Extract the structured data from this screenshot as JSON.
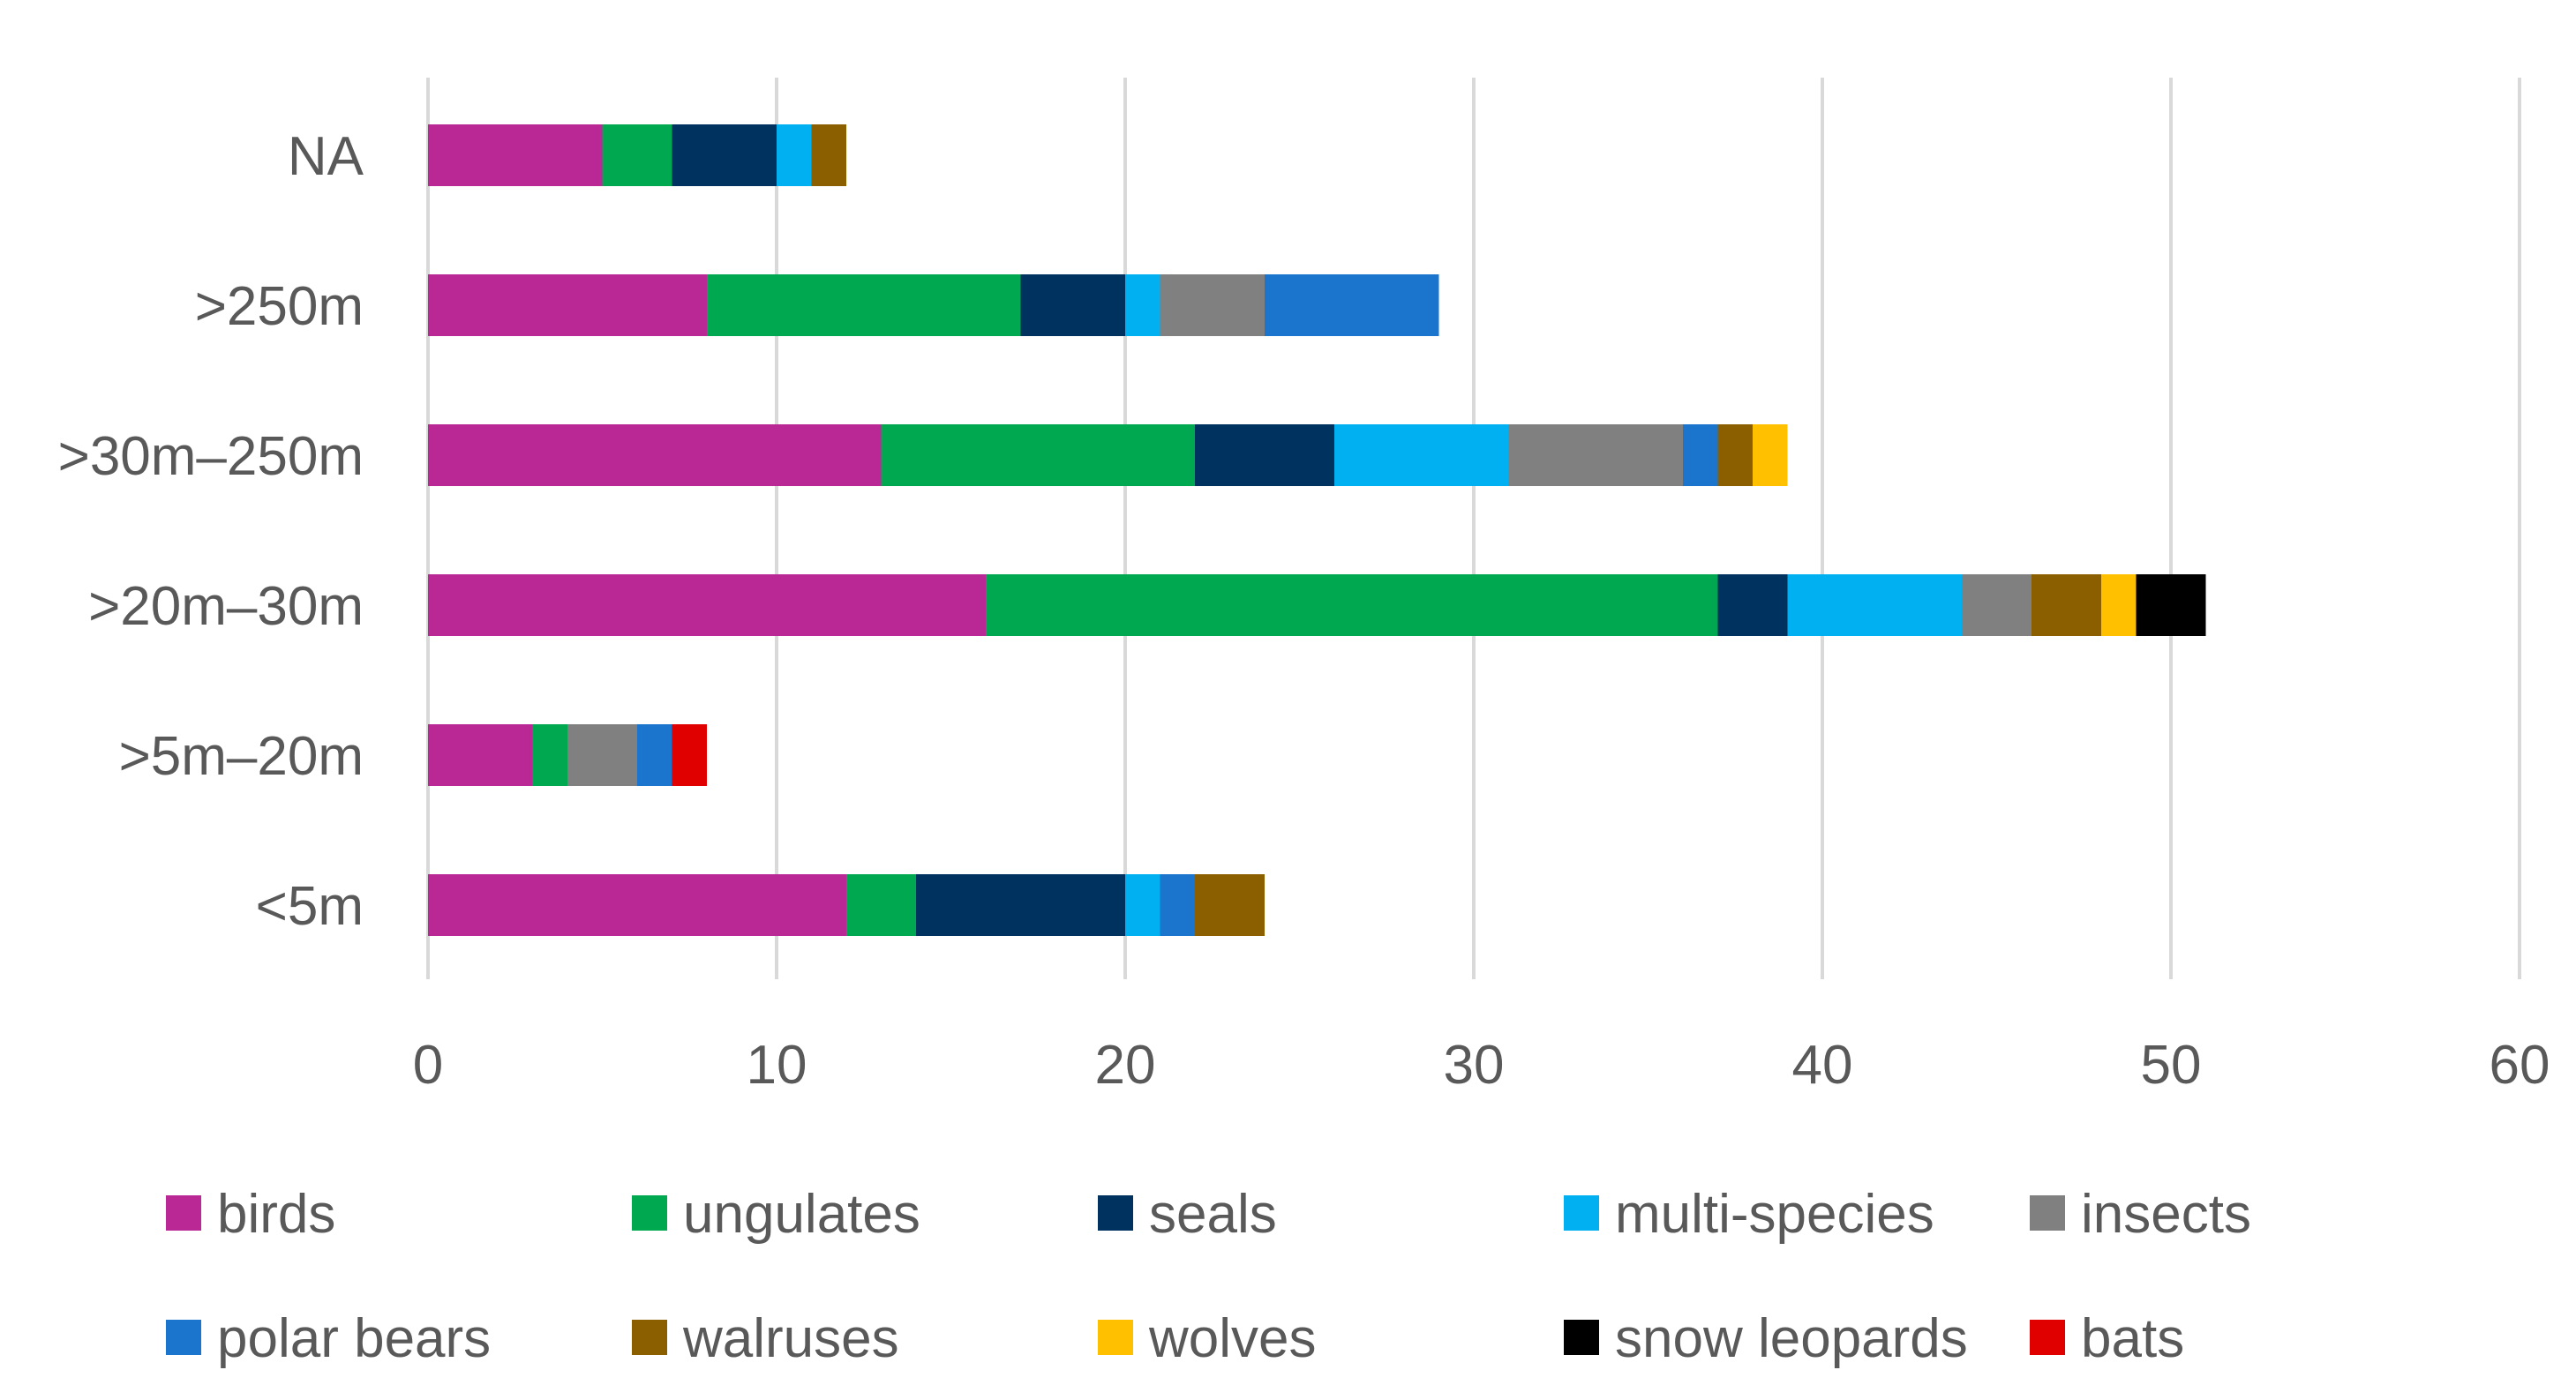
{
  "chart_data": {
    "type": "bar",
    "orientation": "horizontal",
    "stacked": true,
    "title": "",
    "xlabel": "",
    "ylabel": "",
    "xlim": [
      0,
      60
    ],
    "x_ticks": [
      "0",
      "10",
      "20",
      "30",
      "40",
      "50",
      "60"
    ],
    "x_tick_values": [
      0,
      10,
      20,
      30,
      40,
      50,
      60
    ],
    "grid": "vertical",
    "legend_position": "bottom",
    "categories": [
      "NA",
      ">250m",
      ">30m–250m",
      ">20m–30m",
      ">5m–20m",
      "<5m"
    ],
    "series": [
      {
        "name": "birds",
        "color": "#BA2896",
        "values": [
          5,
          8,
          13,
          16,
          3,
          12
        ]
      },
      {
        "name": "ungulates",
        "color": "#00A84F",
        "values": [
          2,
          9,
          9,
          21,
          1,
          2
        ]
      },
      {
        "name": "seals",
        "color": "#003260",
        "values": [
          3,
          3,
          4,
          2,
          0,
          6
        ]
      },
      {
        "name": "multi-species",
        "color": "#00B0F0",
        "values": [
          1,
          1,
          5,
          5,
          0,
          1
        ]
      },
      {
        "name": "insects",
        "color": "#808080",
        "values": [
          0,
          3,
          5,
          2,
          2,
          0
        ]
      },
      {
        "name": "polar bears",
        "color": "#1B75CC",
        "values": [
          0,
          5,
          1,
          0,
          1,
          1
        ]
      },
      {
        "name": "walruses",
        "color": "#8B5E00",
        "values": [
          1,
          0,
          1,
          2,
          0,
          2
        ]
      },
      {
        "name": "wolves",
        "color": "#FFC000",
        "values": [
          0,
          0,
          1,
          1,
          0,
          0
        ]
      },
      {
        "name": "snow leopards",
        "color": "#000000",
        "values": [
          0,
          0,
          0,
          2,
          0,
          0
        ]
      },
      {
        "name": "bats",
        "color": "#E00000",
        "values": [
          0,
          0,
          0,
          0,
          1,
          0
        ]
      }
    ]
  }
}
